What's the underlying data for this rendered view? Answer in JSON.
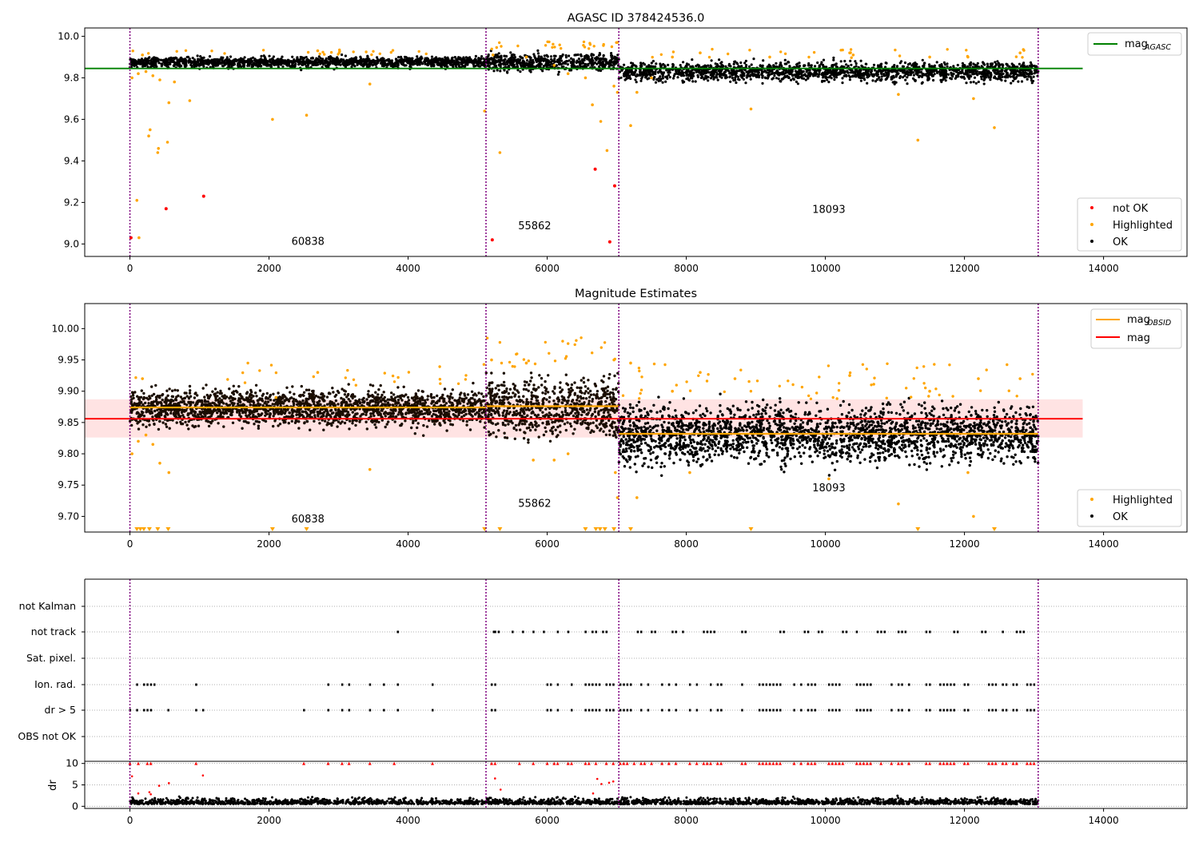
{
  "chart_data": [
    {
      "type": "scatter",
      "title": "AGASC ID 378424536.0",
      "xlim": [
        -650,
        15200
      ],
      "ylim": [
        8.94,
        10.04
      ],
      "xticks": [
        0,
        2000,
        4000,
        6000,
        8000,
        10000,
        12000,
        14000
      ],
      "yticks": [
        9.0,
        9.2,
        9.4,
        9.6,
        9.8,
        10.0
      ],
      "ytick_labels": [
        "9.0",
        "9.2",
        "9.4",
        "9.6",
        "9.8",
        "10.0"
      ],
      "obsid_boundaries": [
        0,
        5120,
        7030,
        13060
      ],
      "obsid_labels": [
        {
          "text": "60838",
          "x": 2560,
          "y": 8.995
        },
        {
          "text": "55862",
          "x": 5820,
          "y": 9.07
        },
        {
          "text": "18093",
          "x": 10050,
          "y": 9.15
        }
      ],
      "agasc_mag": 9.845,
      "agasc_line_x": [
        -650,
        13700
      ],
      "segments": [
        {
          "x0": 0,
          "x1": 5120,
          "center": 9.875,
          "spread": 0.012
        },
        {
          "x0": 5120,
          "x1": 7030,
          "center": 9.875,
          "spread": 0.02
        },
        {
          "x0": 7030,
          "x1": 13060,
          "center": 9.83,
          "spread": 0.022
        }
      ],
      "highlighted_points": [
        [
          30,
          9.8
        ],
        [
          120,
          9.82
        ],
        [
          100,
          9.21
        ],
        [
          130,
          9.03
        ],
        [
          180,
          9.91
        ],
        [
          230,
          9.83
        ],
        [
          270,
          9.52
        ],
        [
          290,
          9.55
        ],
        [
          330,
          9.81
        ],
        [
          400,
          9.44
        ],
        [
          410,
          9.46
        ],
        [
          430,
          9.79
        ],
        [
          540,
          9.49
        ],
        [
          560,
          9.68
        ],
        [
          640,
          9.78
        ],
        [
          860,
          9.69
        ],
        [
          2050,
          9.6
        ],
        [
          2540,
          9.62
        ],
        [
          2700,
          9.93
        ],
        [
          3450,
          9.77
        ],
        [
          5100,
          9.64
        ],
        [
          5220,
          9.91
        ],
        [
          5320,
          9.44
        ],
        [
          5700,
          9.9
        ],
        [
          6100,
          9.86
        ],
        [
          6300,
          9.82
        ],
        [
          6550,
          9.8
        ],
        [
          6650,
          9.67
        ],
        [
          6770,
          9.59
        ],
        [
          6860,
          9.45
        ],
        [
          6960,
          9.76
        ],
        [
          7010,
          9.73
        ],
        [
          7200,
          9.57
        ],
        [
          7290,
          9.73
        ],
        [
          7500,
          9.8
        ],
        [
          7800,
          9.9
        ],
        [
          8200,
          9.92
        ],
        [
          8930,
          9.65
        ],
        [
          9200,
          9.9
        ],
        [
          10350,
          9.92
        ],
        [
          10400,
          9.91
        ],
        [
          11050,
          9.72
        ],
        [
          11330,
          9.5
        ],
        [
          11500,
          9.9
        ],
        [
          12050,
          9.9
        ],
        [
          12130,
          9.7
        ],
        [
          12430,
          9.56
        ],
        [
          12800,
          9.92
        ]
      ],
      "not_ok_points": [
        [
          15,
          9.03
        ],
        [
          520,
          9.17
        ],
        [
          1060,
          9.23
        ],
        [
          5210,
          9.02
        ],
        [
          6690,
          9.36
        ],
        [
          6900,
          9.01
        ],
        [
          6970,
          9.28
        ]
      ],
      "legend": [
        {
          "label_main": "mag",
          "label_sub": "AGASC",
          "color": "#008000",
          "kind": "line"
        },
        {
          "label": "not OK",
          "color": "#ff0000",
          "kind": "dot"
        },
        {
          "label": "Highlighted",
          "color": "#ffa500",
          "kind": "dot"
        },
        {
          "label": "OK",
          "color": "#000000",
          "kind": "dot"
        }
      ]
    },
    {
      "type": "scatter",
      "title": "Magnitude Estimates",
      "xlim": [
        -650,
        15200
      ],
      "ylim": [
        9.675,
        10.04
      ],
      "xticks": [
        0,
        2000,
        4000,
        6000,
        8000,
        10000,
        12000,
        14000
      ],
      "yticks": [
        9.7,
        9.75,
        9.8,
        9.85,
        9.9,
        9.95,
        10.0
      ],
      "ytick_labels": [
        "9.70",
        "9.75",
        "9.80",
        "9.85",
        "9.90",
        "9.95",
        "10.00"
      ],
      "obsid_boundaries": [
        0,
        5120,
        7030,
        13060
      ],
      "obsid_labels": [
        {
          "text": "60838",
          "x": 2560,
          "y": 9.69
        },
        {
          "text": "55862",
          "x": 5820,
          "y": 9.715
        },
        {
          "text": "18093",
          "x": 10050,
          "y": 9.74
        }
      ],
      "mag": 9.856,
      "mag_band": [
        9.826,
        9.887
      ],
      "mag_line_x": [
        -650,
        13700
      ],
      "mag_obsid_levels": [
        {
          "x0": 0,
          "x1": 5120,
          "value": 9.874
        },
        {
          "x0": 5120,
          "x1": 7030,
          "value": 9.876
        },
        {
          "x0": 7030,
          "x1": 13060,
          "value": 9.832
        }
      ],
      "segments": [
        {
          "x0": 0,
          "x1": 5120,
          "center": 9.873,
          "spread": 0.014
        },
        {
          "x0": 5120,
          "x1": 7030,
          "center": 9.873,
          "spread": 0.022
        },
        {
          "x0": 7030,
          "x1": 13060,
          "center": 9.83,
          "spread": 0.022
        }
      ],
      "highlighted_points": [
        [
          30,
          9.8
        ],
        [
          120,
          9.82
        ],
        [
          180,
          9.92
        ],
        [
          230,
          9.83
        ],
        [
          330,
          9.815
        ],
        [
          430,
          9.785
        ],
        [
          560,
          9.77
        ],
        [
          2100,
          9.89
        ],
        [
          2700,
          9.93
        ],
        [
          3450,
          9.775
        ],
        [
          5200,
          9.95
        ],
        [
          5700,
          9.945
        ],
        [
          5800,
          9.79
        ],
        [
          6100,
          9.79
        ],
        [
          6300,
          9.8
        ],
        [
          6960,
          9.95
        ],
        [
          6980,
          9.77
        ],
        [
          7010,
          9.73
        ],
        [
          7200,
          9.945
        ],
        [
          7290,
          9.73
        ],
        [
          7800,
          9.9
        ],
        [
          8050,
          9.77
        ],
        [
          8200,
          9.93
        ],
        [
          8700,
          9.92
        ],
        [
          10050,
          9.76
        ],
        [
          10350,
          9.925
        ],
        [
          11050,
          9.72
        ],
        [
          11500,
          9.9
        ],
        [
          12050,
          9.77
        ],
        [
          12130,
          9.7
        ],
        [
          12200,
          9.92
        ],
        [
          12800,
          9.92
        ]
      ],
      "lower_limit_markers": [
        100,
        150,
        200,
        280,
        400,
        550,
        2050,
        2540,
        5100,
        5320,
        6550,
        6700,
        6760,
        6830,
        6960,
        7200,
        8930,
        11330,
        12430
      ],
      "legend": [
        {
          "label_main": "mag",
          "label_sub": "OBSID",
          "color": "#ffa500",
          "kind": "line"
        },
        {
          "label": "mag",
          "color": "#ff0000",
          "kind": "line"
        },
        {
          "label": "Highlighted",
          "color": "#ffa500",
          "kind": "dot"
        },
        {
          "label": "OK",
          "color": "#000000",
          "kind": "dot"
        }
      ]
    },
    {
      "type": "scatter",
      "xlim": [
        -650,
        15200
      ],
      "categories": [
        "not Kalman",
        "not track",
        "Sat. pixel.",
        "Ion. rad.",
        "dr > 5",
        "OBS not OK"
      ],
      "obsid_boundaries": [
        0,
        5120,
        7030,
        13060
      ],
      "flag_points": {
        "not track": [
          3850,
          5230,
          5250,
          5300,
          5500,
          5650,
          5800,
          5950,
          6150,
          6300,
          6550,
          6650,
          6700,
          6800,
          6850,
          7300,
          7350,
          7500,
          7550,
          7800,
          7850,
          7950,
          8250,
          8300,
          8350,
          8400,
          8800,
          8850,
          9350,
          9400,
          9700,
          9750,
          9900,
          9950,
          10250,
          10300,
          10450,
          10750,
          10800,
          10850,
          11050,
          11100,
          11150,
          11450,
          11500,
          11850,
          11900,
          12250,
          12300,
          12550,
          12750,
          12800,
          12850
        ],
        "Ion. rad.": [
          100,
          200,
          250,
          300,
          350,
          950,
          2850,
          3050,
          3150,
          3450,
          3650,
          3850,
          4350,
          5200,
          5250,
          6000,
          6050,
          6150,
          6350,
          6550,
          6600,
          6650,
          6700,
          6750,
          6850,
          6900,
          6950,
          7050,
          7100,
          7150,
          7200,
          7350,
          7450,
          7650,
          7750,
          7850,
          8050,
          8150,
          8350,
          8450,
          8500,
          8800,
          9050,
          9100,
          9150,
          9200,
          9250,
          9300,
          9350,
          9550,
          9650,
          9750,
          9800,
          9850,
          10050,
          10100,
          10150,
          10200,
          10450,
          10500,
          10550,
          10600,
          10650,
          10950,
          11050,
          11100,
          11200,
          11450,
          11500,
          11650,
          11700,
          11750,
          11800,
          11850,
          12000,
          12050,
          12350,
          12400,
          12450,
          12550,
          12600,
          12700,
          12750,
          12900,
          12950,
          13000
        ],
        "dr > 5": [
          0,
          100,
          200,
          250,
          300,
          550,
          950,
          1050,
          2500,
          2850,
          3050,
          3150,
          3450,
          3650,
          3850,
          4350,
          5200,
          5250,
          6000,
          6050,
          6150,
          6350,
          6550,
          6600,
          6650,
          6700,
          6750,
          6850,
          6900,
          6950,
          7050,
          7100,
          7150,
          7200,
          7350,
          7450,
          7650,
          7750,
          7850,
          8050,
          8150,
          8350,
          8450,
          8500,
          8800,
          9050,
          9100,
          9150,
          9200,
          9250,
          9300,
          9350,
          9550,
          9650,
          9750,
          9800,
          9850,
          10050,
          10100,
          10150,
          10200,
          10450,
          10500,
          10550,
          10600,
          10650,
          10950,
          11050,
          11100,
          11200,
          11450,
          11500,
          11650,
          11700,
          11750,
          11800,
          11850,
          12000,
          12050,
          12350,
          12400,
          12450,
          12550,
          12600,
          12700,
          12750,
          12900,
          12950,
          13000
        ]
      }
    },
    {
      "type": "scatter",
      "xlim": [
        -650,
        15200
      ],
      "ylim": [
        -0.5,
        10.5
      ],
      "ylabel": "dr",
      "xticks": [
        0,
        2000,
        4000,
        6000,
        8000,
        10000,
        12000,
        14000
      ],
      "yticks": [
        0,
        5,
        10
      ],
      "obsid_boundaries": [
        0,
        5120,
        7030,
        13060
      ],
      "dr_scatter": {
        "x0": 0,
        "x1": 13060,
        "center": 0.8,
        "spread": 0.6
      },
      "dr_red_points": [
        [
          30,
          7.0
        ],
        [
          120,
          3.0
        ],
        [
          280,
          3.3
        ],
        [
          300,
          2.8
        ],
        [
          420,
          4.8
        ],
        [
          560,
          5.4
        ],
        [
          1050,
          7.2
        ],
        [
          5250,
          6.5
        ],
        [
          5330,
          3.9
        ],
        [
          6660,
          3.0
        ],
        [
          6720,
          6.4
        ],
        [
          6780,
          5.2
        ],
        [
          6890,
          5.5
        ],
        [
          6950,
          5.8
        ]
      ],
      "dr_clipped_x": [
        0,
        120,
        250,
        300,
        950,
        2500,
        2850,
        3050,
        3150,
        3450,
        3800,
        4350,
        5200,
        5250,
        5600,
        5800,
        6000,
        6100,
        6150,
        6300,
        6350,
        6550,
        6600,
        6700,
        6850,
        6950,
        7050,
        7100,
        7150,
        7250,
        7350,
        7400,
        7500,
        7650,
        7750,
        7850,
        8050,
        8150,
        8250,
        8300,
        8350,
        8450,
        8500,
        8800,
        8850,
        9050,
        9100,
        9150,
        9200,
        9250,
        9300,
        9350,
        9550,
        9650,
        9750,
        9800,
        9850,
        10050,
        10100,
        10150,
        10200,
        10250,
        10450,
        10500,
        10550,
        10600,
        10650,
        10800,
        10950,
        11050,
        11100,
        11200,
        11450,
        11500,
        11650,
        11700,
        11750,
        11800,
        11850,
        12000,
        12050,
        12350,
        12400,
        12450,
        12550,
        12600,
        12700,
        12750,
        12900,
        12950,
        13000
      ]
    }
  ]
}
